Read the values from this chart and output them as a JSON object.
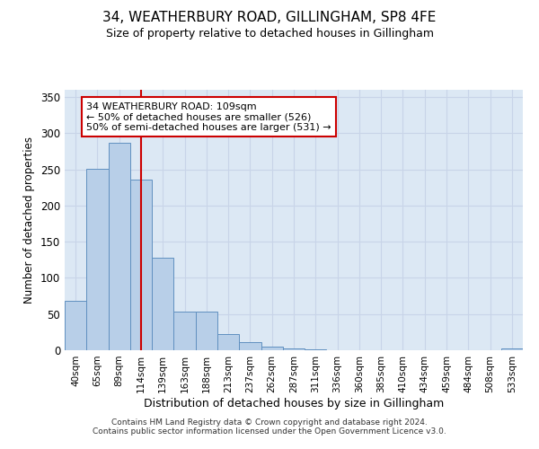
{
  "title": "34, WEATHERBURY ROAD, GILLINGHAM, SP8 4FE",
  "subtitle": "Size of property relative to detached houses in Gillingham",
  "xlabel": "Distribution of detached houses by size in Gillingham",
  "ylabel": "Number of detached properties",
  "categories": [
    "40sqm",
    "65sqm",
    "89sqm",
    "114sqm",
    "139sqm",
    "163sqm",
    "188sqm",
    "213sqm",
    "237sqm",
    "262sqm",
    "287sqm",
    "311sqm",
    "336sqm",
    "360sqm",
    "385sqm",
    "410sqm",
    "434sqm",
    "459sqm",
    "484sqm",
    "508sqm",
    "533sqm"
  ],
  "values": [
    68,
    251,
    287,
    236,
    128,
    54,
    54,
    22,
    11,
    5,
    3,
    1,
    0,
    0,
    0,
    0,
    0,
    0,
    0,
    0,
    2
  ],
  "bar_color": "#b8cfe8",
  "bar_edge_color": "#6090c0",
  "vline_x": 3.0,
  "vline_color": "#cc0000",
  "annotation_text": "34 WEATHERBURY ROAD: 109sqm\n← 50% of detached houses are smaller (526)\n50% of semi-detached houses are larger (531) →",
  "annotation_box_color": "#ffffff",
  "annotation_box_edge": "#cc0000",
  "grid_color": "#c8d4e8",
  "background_color": "#dce8f4",
  "footer": "Contains HM Land Registry data © Crown copyright and database right 2024.\nContains public sector information licensed under the Open Government Licence v3.0.",
  "ylim": [
    0,
    360
  ],
  "yticks": [
    0,
    50,
    100,
    150,
    200,
    250,
    300,
    350
  ]
}
